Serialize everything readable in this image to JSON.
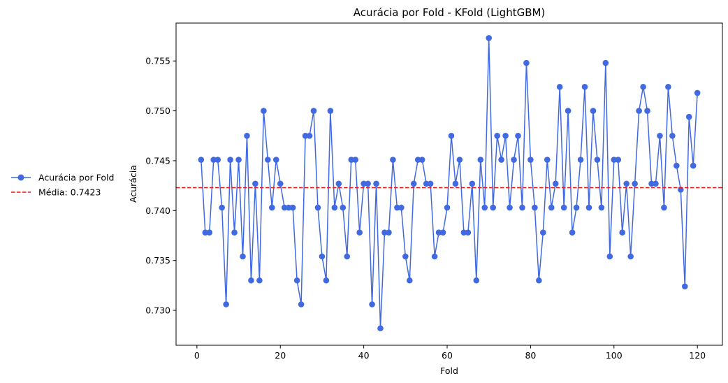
{
  "chart_data": {
    "type": "line",
    "title": "Acurácia por Fold - KFold (LightGBM)",
    "xlabel": "Fold",
    "ylabel": "Acurácia",
    "xlim": [
      -5,
      126
    ],
    "ylim": [
      0.7265,
      0.7588
    ],
    "xticks": [
      0,
      20,
      40,
      60,
      80,
      100,
      120
    ],
    "yticks": [
      0.73,
      0.735,
      0.74,
      0.745,
      0.75,
      0.755
    ],
    "ytick_labels": [
      "0.730",
      "0.735",
      "0.740",
      "0.745",
      "0.750",
      "0.755"
    ],
    "grid": false,
    "legend_position": "center-left outside",
    "colors": {
      "series": "#4169e1",
      "mean": "#e31a1c"
    },
    "series": [
      {
        "name": "Acurácia por Fold",
        "x": [
          1,
          2,
          3,
          4,
          5,
          6,
          7,
          8,
          9,
          10,
          11,
          12,
          13,
          14,
          15,
          16,
          17,
          18,
          19,
          20,
          21,
          22,
          23,
          24,
          25,
          26,
          27,
          28,
          29,
          30,
          31,
          32,
          33,
          34,
          35,
          36,
          37,
          38,
          39,
          40,
          41,
          42,
          43,
          44,
          45,
          46,
          47,
          48,
          49,
          50,
          51,
          52,
          53,
          54,
          55,
          56,
          57,
          58,
          59,
          60,
          61,
          62,
          63,
          64,
          65,
          66,
          67,
          68,
          69,
          70,
          71,
          72,
          73,
          74,
          75,
          76,
          77,
          78,
          79,
          80,
          81,
          82,
          83,
          84,
          85,
          86,
          87,
          88,
          89,
          90,
          91,
          92,
          93,
          94,
          95,
          96,
          97,
          98,
          99,
          100,
          101,
          102,
          103,
          104,
          105,
          106,
          107,
          108,
          109,
          110,
          111,
          112,
          113,
          114,
          115,
          116,
          117,
          118,
          119,
          120
        ],
        "values": [
          0.7451,
          0.7378,
          0.7378,
          0.7451,
          0.7451,
          0.7403,
          0.7306,
          0.7451,
          0.7378,
          0.7451,
          0.7354,
          0.7475,
          0.733,
          0.7427,
          0.733,
          0.75,
          0.7451,
          0.7403,
          0.7451,
          0.7427,
          0.7403,
          0.7403,
          0.7403,
          0.733,
          0.7306,
          0.7475,
          0.7475,
          0.75,
          0.7403,
          0.7354,
          0.733,
          0.75,
          0.7403,
          0.7427,
          0.7403,
          0.7354,
          0.7451,
          0.7451,
          0.7378,
          0.7427,
          0.7427,
          0.7306,
          0.7427,
          0.7282,
          0.7378,
          0.7378,
          0.7451,
          0.7403,
          0.7403,
          0.7354,
          0.733,
          0.7427,
          0.7451,
          0.7451,
          0.7427,
          0.7427,
          0.7354,
          0.7378,
          0.7378,
          0.7403,
          0.7475,
          0.7427,
          0.7451,
          0.7378,
          0.7378,
          0.7427,
          0.733,
          0.7451,
          0.7403,
          0.7573,
          0.7403,
          0.7475,
          0.7451,
          0.7475,
          0.7403,
          0.7451,
          0.7475,
          0.7403,
          0.7548,
          0.7451,
          0.7403,
          0.733,
          0.7378,
          0.7451,
          0.7403,
          0.7427,
          0.7524,
          0.7403,
          0.75,
          0.7378,
          0.7403,
          0.7451,
          0.7524,
          0.7403,
          0.75,
          0.7451,
          0.7403,
          0.7548,
          0.7354,
          0.7451,
          0.7451,
          0.7378,
          0.7427,
          0.7354,
          0.7427,
          0.75,
          0.7524,
          0.75,
          0.7427,
          0.7427,
          0.7475,
          0.7403,
          0.7524,
          0.7475,
          0.7445,
          0.7421,
          0.7324,
          0.7494,
          0.7445,
          0.7518
        ]
      }
    ],
    "mean_line": {
      "name": "Média: 0.7423",
      "value": 0.7423
    }
  }
}
